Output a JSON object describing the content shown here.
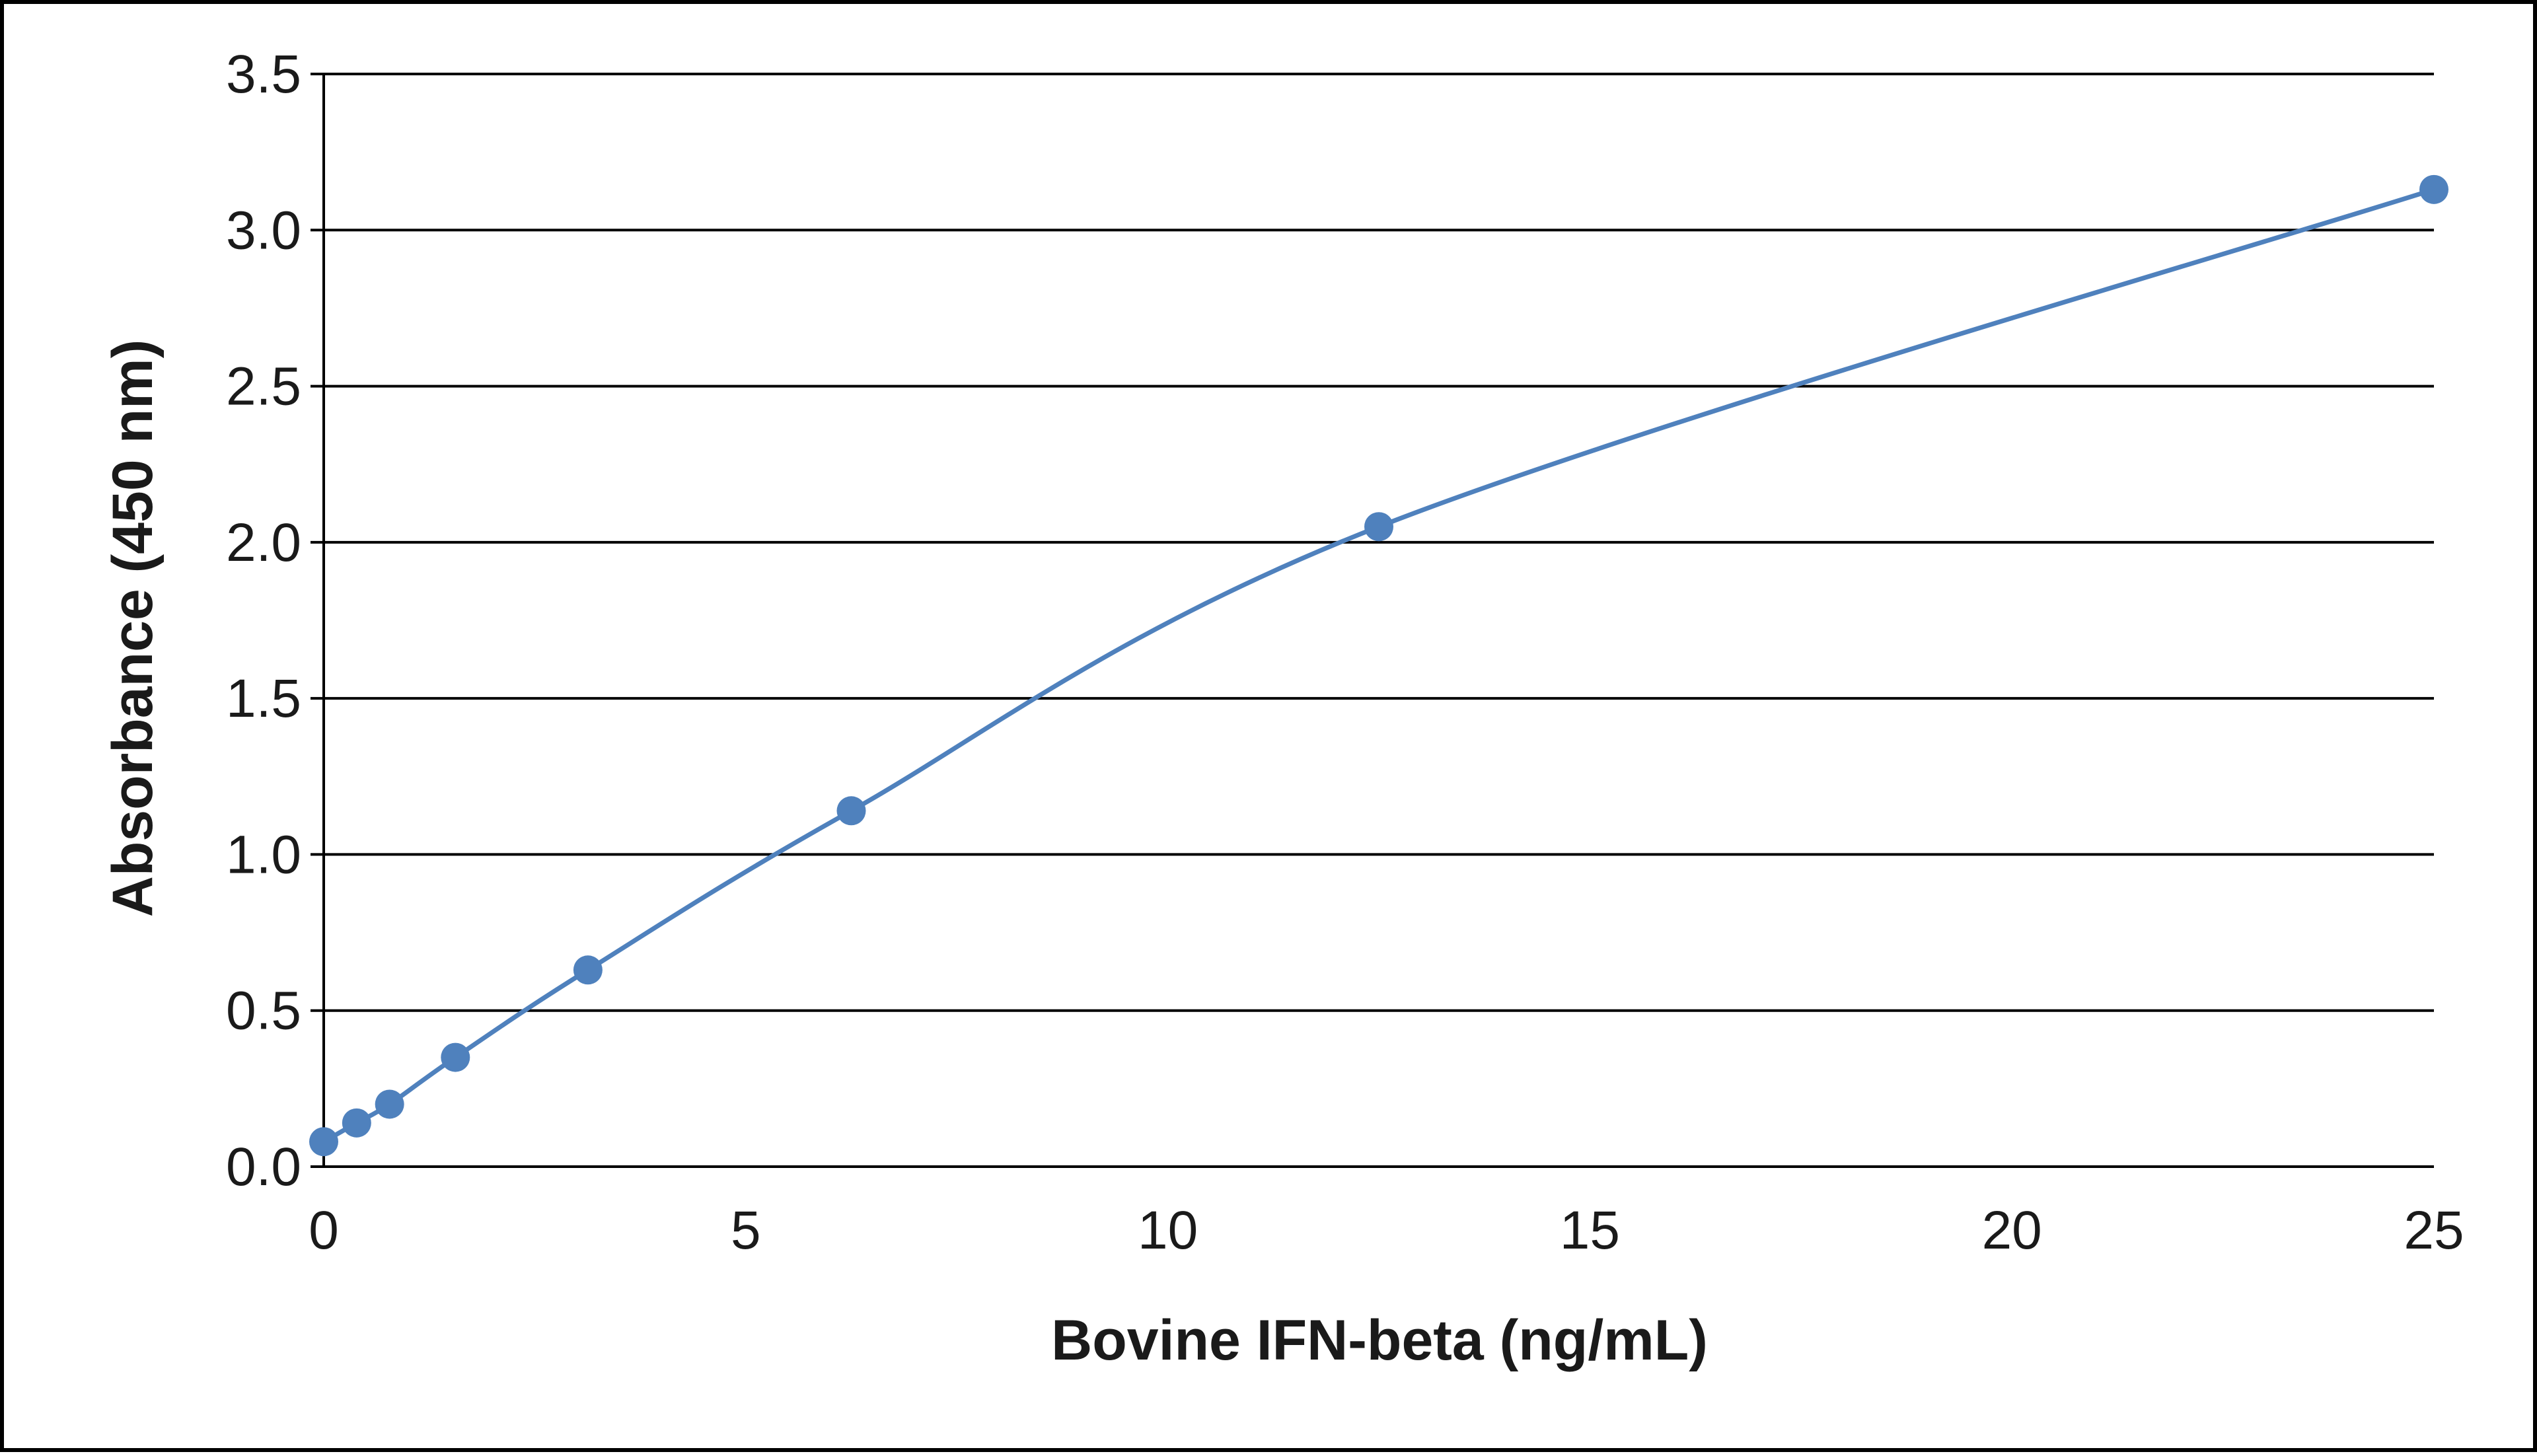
{
  "chart_data": {
    "type": "line",
    "title": "",
    "xlabel": "Bovine IFN-beta (ng/mL)",
    "ylabel": "Absorbance  (450 nm)",
    "xlim": [
      0,
      25
    ],
    "ylim": [
      0,
      3.5
    ],
    "x_ticks": [
      "0",
      "5",
      "10",
      "15",
      "20",
      "25"
    ],
    "y_ticks": [
      "0.0",
      "0.5",
      "1.0",
      "1.5",
      "2.0",
      "2.5",
      "3.0",
      "3.5"
    ],
    "grid": "horizontal",
    "legend": "none",
    "smooth": true,
    "series": [
      {
        "color": "#4f81bd",
        "marker": "circle",
        "points": [
          {
            "x": 0,
            "y": 0.08
          },
          {
            "x": 0.39,
            "y": 0.14
          },
          {
            "x": 0.78,
            "y": 0.2
          },
          {
            "x": 1.56,
            "y": 0.35
          },
          {
            "x": 3.13,
            "y": 0.63
          },
          {
            "x": 6.25,
            "y": 1.14
          },
          {
            "x": 12.5,
            "y": 2.05
          },
          {
            "x": 25,
            "y": 3.13
          }
        ]
      }
    ]
  }
}
